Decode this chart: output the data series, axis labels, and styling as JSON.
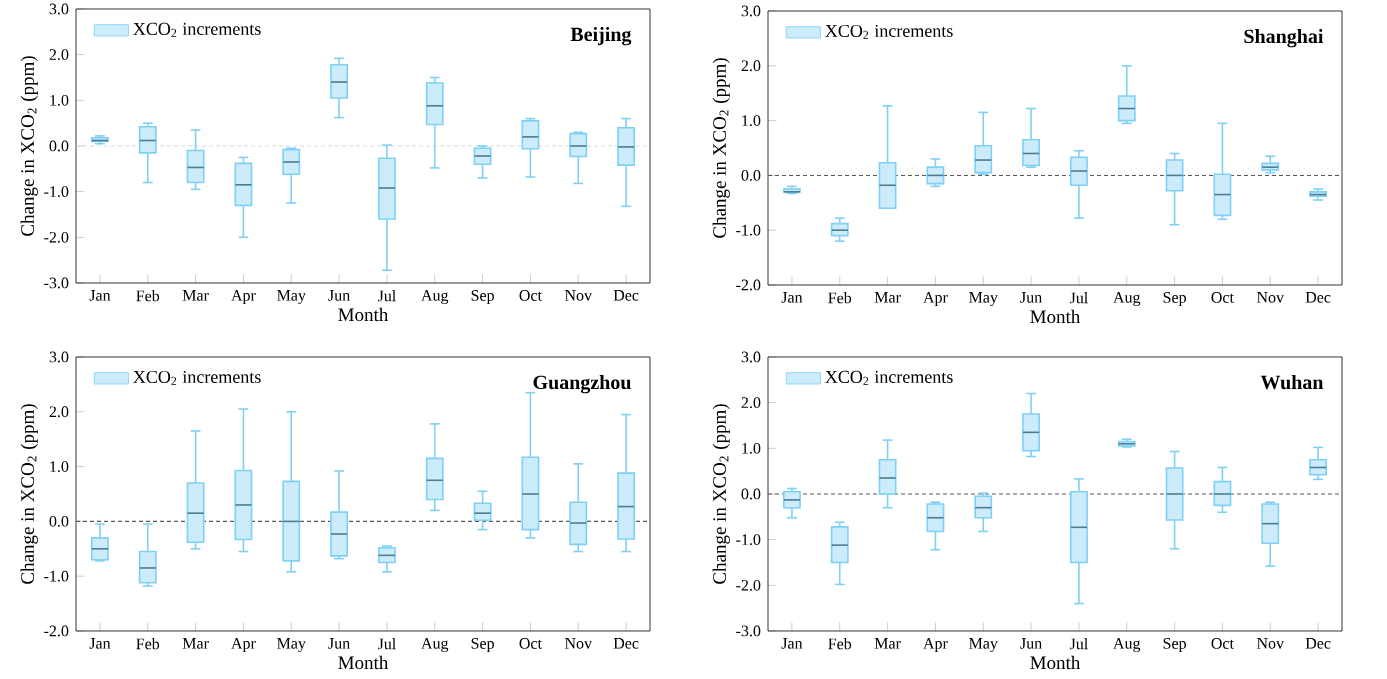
{
  "chart_data": [
    {
      "type": "box",
      "title": "Beijing",
      "xlabel": "Month",
      "ylabel": "Change in XCO$_{2}$ (ppm)",
      "categories": [
        "Jan",
        "Feb",
        "Mar",
        "Apr",
        "May",
        "Jun",
        "Jul",
        "Aug",
        "Sep",
        "Oct",
        "Nov",
        "Dec"
      ],
      "ylim": [
        -3,
        3
      ],
      "yticks": [
        {
          "value": -3,
          "label": "-3.0"
        },
        {
          "value": -2,
          "label": "-2.0"
        },
        {
          "value": -1,
          "label": "-1.0"
        },
        {
          "value": 0,
          "label": "0.0"
        },
        {
          "value": 1,
          "label": "1.0"
        },
        {
          "value": 2,
          "label": "2.0"
        },
        {
          "value": 3,
          "label": "3.0"
        }
      ],
      "legend": "top left",
      "ref_lines": [
        {
          "axis": "y",
          "value": 0,
          "color": "#d9d9d9",
          "line_style": "dashed"
        }
      ],
      "series": [
        {
          "name": "XCO$_{2}$ increments",
          "color": "#7fd0f5",
          "boxes": [
            {
              "low": 0.05,
              "q1": 0.1,
              "median": 0.12,
              "q3": 0.18,
              "high": 0.22
            },
            {
              "low": -0.8,
              "q1": -0.15,
              "median": 0.12,
              "q3": 0.42,
              "high": 0.5
            },
            {
              "low": -0.95,
              "q1": -0.8,
              "median": -0.47,
              "q3": -0.1,
              "high": 0.35
            },
            {
              "low": -2.0,
              "q1": -1.3,
              "median": -0.85,
              "q3": -0.38,
              "high": -0.25
            },
            {
              "low": -1.25,
              "q1": -0.62,
              "median": -0.35,
              "q3": -0.08,
              "high": -0.05
            },
            {
              "low": 0.62,
              "q1": 1.05,
              "median": 1.4,
              "q3": 1.78,
              "high": 1.92
            },
            {
              "low": -2.72,
              "q1": -1.6,
              "median": -0.92,
              "q3": -0.27,
              "high": 0.02
            },
            {
              "low": -0.48,
              "q1": 0.47,
              "median": 0.88,
              "q3": 1.38,
              "high": 1.5
            },
            {
              "low": -0.7,
              "q1": -0.4,
              "median": -0.22,
              "q3": -0.05,
              "high": 0.0
            },
            {
              "low": -0.68,
              "q1": -0.06,
              "median": 0.2,
              "q3": 0.55,
              "high": 0.6
            },
            {
              "low": -0.82,
              "q1": -0.23,
              "median": 0.0,
              "q3": 0.27,
              "high": 0.3
            },
            {
              "low": -1.32,
              "q1": -0.42,
              "median": -0.02,
              "q3": 0.4,
              "high": 0.6
            }
          ]
        }
      ]
    },
    {
      "type": "box",
      "title": "Shanghai",
      "xlabel": "Month",
      "ylabel": "Change in XCO$_{2}$ (ppm)",
      "categories": [
        "Jan",
        "Feb",
        "Mar",
        "Apr",
        "May",
        "Jun",
        "Jul",
        "Aug",
        "Sep",
        "Oct",
        "Nov",
        "Dec"
      ],
      "ylim": [
        -2,
        3
      ],
      "yticks": [
        {
          "value": -2,
          "label": "-2.0"
        },
        {
          "value": -1,
          "label": "-1.0"
        },
        {
          "value": 0,
          "label": "0.0"
        },
        {
          "value": 1,
          "label": "1.0"
        },
        {
          "value": 2,
          "label": "2.0"
        },
        {
          "value": 3,
          "label": "3.0"
        }
      ],
      "legend": "top left",
      "ref_lines": [
        {
          "axis": "y",
          "value": 0,
          "color": "#595959",
          "line_style": "dashed"
        }
      ],
      "series": [
        {
          "name": "XCO$_{2}$ increments",
          "color": "#7fd0f5",
          "boxes": [
            {
              "low": -0.33,
              "q1": -0.3,
              "median": -0.3,
              "q3": -0.25,
              "high": -0.2
            },
            {
              "low": -1.2,
              "q1": -1.1,
              "median": -1.0,
              "q3": -0.88,
              "high": -0.78
            },
            {
              "low": -0.6,
              "q1": -0.6,
              "median": -0.18,
              "q3": 0.23,
              "high": 1.27
            },
            {
              "low": -0.2,
              "q1": -0.15,
              "median": 0.0,
              "q3": 0.15,
              "high": 0.3
            },
            {
              "low": 0.02,
              "q1": 0.05,
              "median": 0.28,
              "q3": 0.54,
              "high": 1.15
            },
            {
              "low": 0.15,
              "q1": 0.18,
              "median": 0.4,
              "q3": 0.65,
              "high": 1.22
            },
            {
              "low": -0.78,
              "q1": -0.18,
              "median": 0.08,
              "q3": 0.33,
              "high": 0.45
            },
            {
              "low": 0.95,
              "q1": 1.0,
              "median": 1.22,
              "q3": 1.45,
              "high": 2.0
            },
            {
              "low": -0.9,
              "q1": -0.28,
              "median": 0.0,
              "q3": 0.28,
              "high": 0.4
            },
            {
              "low": -0.8,
              "q1": -0.73,
              "median": -0.35,
              "q3": 0.02,
              "high": 0.95
            },
            {
              "low": 0.05,
              "q1": 0.1,
              "median": 0.15,
              "q3": 0.22,
              "high": 0.35
            },
            {
              "low": -0.45,
              "q1": -0.38,
              "median": -0.35,
              "q3": -0.3,
              "high": -0.25
            }
          ]
        }
      ]
    },
    {
      "type": "box",
      "title": "Guangzhou",
      "xlabel": "Month",
      "ylabel": "Change in XCO$_{2}$ (ppm)",
      "categories": [
        "Jan",
        "Feb",
        "Mar",
        "Apr",
        "May",
        "Jun",
        "Jul",
        "Aug",
        "Sep",
        "Oct",
        "Nov",
        "Dec"
      ],
      "ylim": [
        -2,
        3
      ],
      "yticks": [
        {
          "value": -2,
          "label": "-2.0"
        },
        {
          "value": -1,
          "label": "-1.0"
        },
        {
          "value": 0,
          "label": "0.0"
        },
        {
          "value": 1,
          "label": "1.0"
        },
        {
          "value": 2,
          "label": "2.0"
        },
        {
          "value": 3,
          "label": "3.0"
        }
      ],
      "legend": "top left",
      "ref_lines": [
        {
          "axis": "y",
          "value": 0,
          "color": "#595959",
          "line_style": "dashed"
        }
      ],
      "series": [
        {
          "name": "XCO$_{2}$ increments",
          "color": "#7fd0f5",
          "boxes": [
            {
              "low": -0.72,
              "q1": -0.7,
              "median": -0.5,
              "q3": -0.3,
              "high": -0.05
            },
            {
              "low": -1.18,
              "q1": -1.12,
              "median": -0.85,
              "q3": -0.55,
              "high": -0.05
            },
            {
              "low": -0.5,
              "q1": -0.38,
              "median": 0.15,
              "q3": 0.7,
              "high": 1.65
            },
            {
              "low": -0.55,
              "q1": -0.33,
              "median": 0.3,
              "q3": 0.93,
              "high": 2.05
            },
            {
              "low": -0.92,
              "q1": -0.72,
              "median": 0.0,
              "q3": 0.73,
              "high": 2.0
            },
            {
              "low": -0.68,
              "q1": -0.63,
              "median": -0.23,
              "q3": 0.17,
              "high": 0.92
            },
            {
              "low": -0.92,
              "q1": -0.75,
              "median": -0.62,
              "q3": -0.48,
              "high": -0.45
            },
            {
              "low": 0.2,
              "q1": 0.4,
              "median": 0.75,
              "q3": 1.15,
              "high": 1.78
            },
            {
              "low": -0.15,
              "q1": 0.02,
              "median": 0.15,
              "q3": 0.33,
              "high": 0.55
            },
            {
              "low": -0.3,
              "q1": -0.15,
              "median": 0.5,
              "q3": 1.17,
              "high": 2.35
            },
            {
              "low": -0.55,
              "q1": -0.42,
              "median": -0.03,
              "q3": 0.35,
              "high": 1.05
            },
            {
              "low": -0.55,
              "q1": -0.32,
              "median": 0.27,
              "q3": 0.88,
              "high": 1.95
            }
          ]
        }
      ]
    },
    {
      "type": "box",
      "title": "Wuhan",
      "xlabel": "Month",
      "ylabel": "Change in XCO$_{2}$ (ppm)",
      "categories": [
        "Jan",
        "Feb",
        "Mar",
        "Apr",
        "May",
        "Jun",
        "Jul",
        "Aug",
        "Sep",
        "Oct",
        "Nov",
        "Dec"
      ],
      "ylim": [
        -3,
        3
      ],
      "yticks": [
        {
          "value": -3,
          "label": "-3.0"
        },
        {
          "value": -2,
          "label": "-2.0"
        },
        {
          "value": -1,
          "label": "-1.0"
        },
        {
          "value": 0,
          "label": "0.0"
        },
        {
          "value": 1,
          "label": "1.0"
        },
        {
          "value": 2,
          "label": "2.0"
        },
        {
          "value": 3,
          "label": "3.0"
        }
      ],
      "legend": "top left",
      "ref_lines": [
        {
          "axis": "y",
          "value": 0,
          "color": "#595959",
          "line_style": "dashed"
        }
      ],
      "series": [
        {
          "name": "XCO$_{2}$ increments",
          "color": "#7fd0f5",
          "boxes": [
            {
              "low": -0.52,
              "q1": -0.3,
              "median": -0.13,
              "q3": 0.05,
              "high": 0.12
            },
            {
              "low": -1.98,
              "q1": -1.5,
              "median": -1.12,
              "q3": -0.72,
              "high": -0.62
            },
            {
              "low": -0.3,
              "q1": 0.0,
              "median": 0.35,
              "q3": 0.75,
              "high": 1.18
            },
            {
              "low": -1.22,
              "q1": -0.82,
              "median": -0.52,
              "q3": -0.22,
              "high": -0.18
            },
            {
              "low": -0.82,
              "q1": -0.52,
              "median": -0.3,
              "q3": -0.05,
              "high": 0.02
            },
            {
              "low": 0.82,
              "q1": 0.95,
              "median": 1.35,
              "q3": 1.75,
              "high": 2.2
            },
            {
              "low": -2.4,
              "q1": -1.5,
              "median": -0.73,
              "q3": 0.05,
              "high": 0.33
            },
            {
              "low": 1.03,
              "q1": 1.05,
              "median": 1.1,
              "q3": 1.15,
              "high": 1.2
            },
            {
              "low": -1.2,
              "q1": -0.57,
              "median": 0.0,
              "q3": 0.57,
              "high": 0.93
            },
            {
              "low": -0.4,
              "q1": -0.25,
              "median": 0.0,
              "q3": 0.27,
              "high": 0.58
            },
            {
              "low": -1.58,
              "q1": -1.08,
              "median": -0.65,
              "q3": -0.22,
              "high": -0.18
            },
            {
              "low": 0.32,
              "q1": 0.42,
              "median": 0.58,
              "q3": 0.75,
              "high": 1.02
            }
          ]
        }
      ]
    }
  ]
}
